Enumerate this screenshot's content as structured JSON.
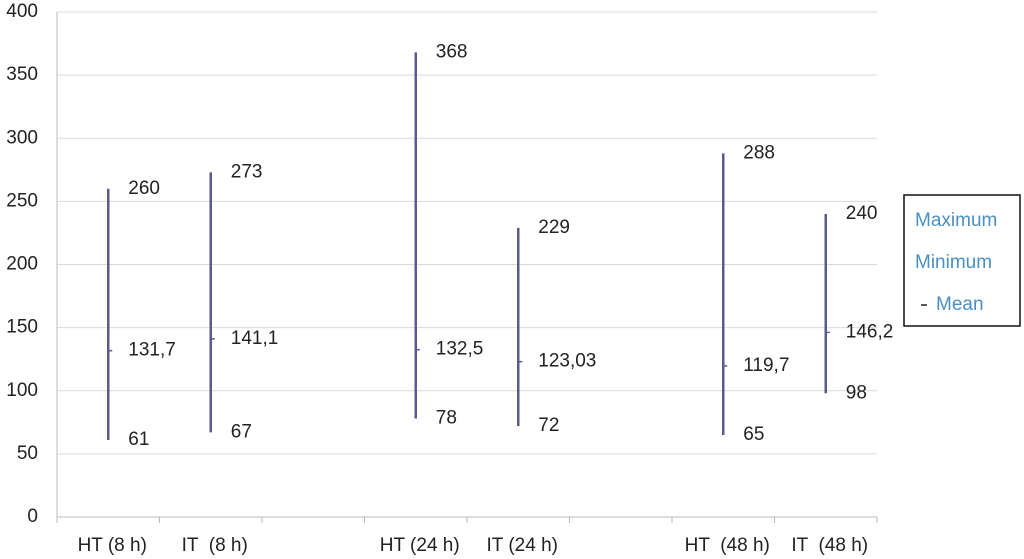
{
  "chart_data": {
    "type": "high-low-mean",
    "categories": [
      "HT (8 h)",
      "IT  (8 h)",
      null,
      "HT (24 h)",
      "IT (24 h)",
      null,
      "HT  (48 h)",
      "IT  (48 h)"
    ],
    "series": [
      {
        "name": "Maximum",
        "color": "#5b5a8e",
        "values": [
          260,
          273,
          null,
          368,
          229,
          null,
          288,
          240
        ]
      },
      {
        "name": "Minimum",
        "color": "#5b5a8e",
        "values": [
          61,
          67,
          null,
          78,
          72,
          null,
          65,
          98
        ]
      },
      {
        "name": "Mean",
        "color": "#5b5a8e",
        "marker": "dash",
        "values": [
          131.7,
          141.1,
          null,
          132.5,
          123.03,
          null,
          119.7,
          146.2
        ],
        "value_labels": [
          "131,7",
          "141,1",
          null,
          "132,5",
          "123,03",
          null,
          "119,7",
          "146,2"
        ]
      }
    ],
    "ylim": [
      0,
      400
    ],
    "yticks": [
      0,
      50,
      100,
      150,
      200,
      250,
      300,
      350,
      400
    ],
    "grid": true,
    "legend": "right"
  }
}
